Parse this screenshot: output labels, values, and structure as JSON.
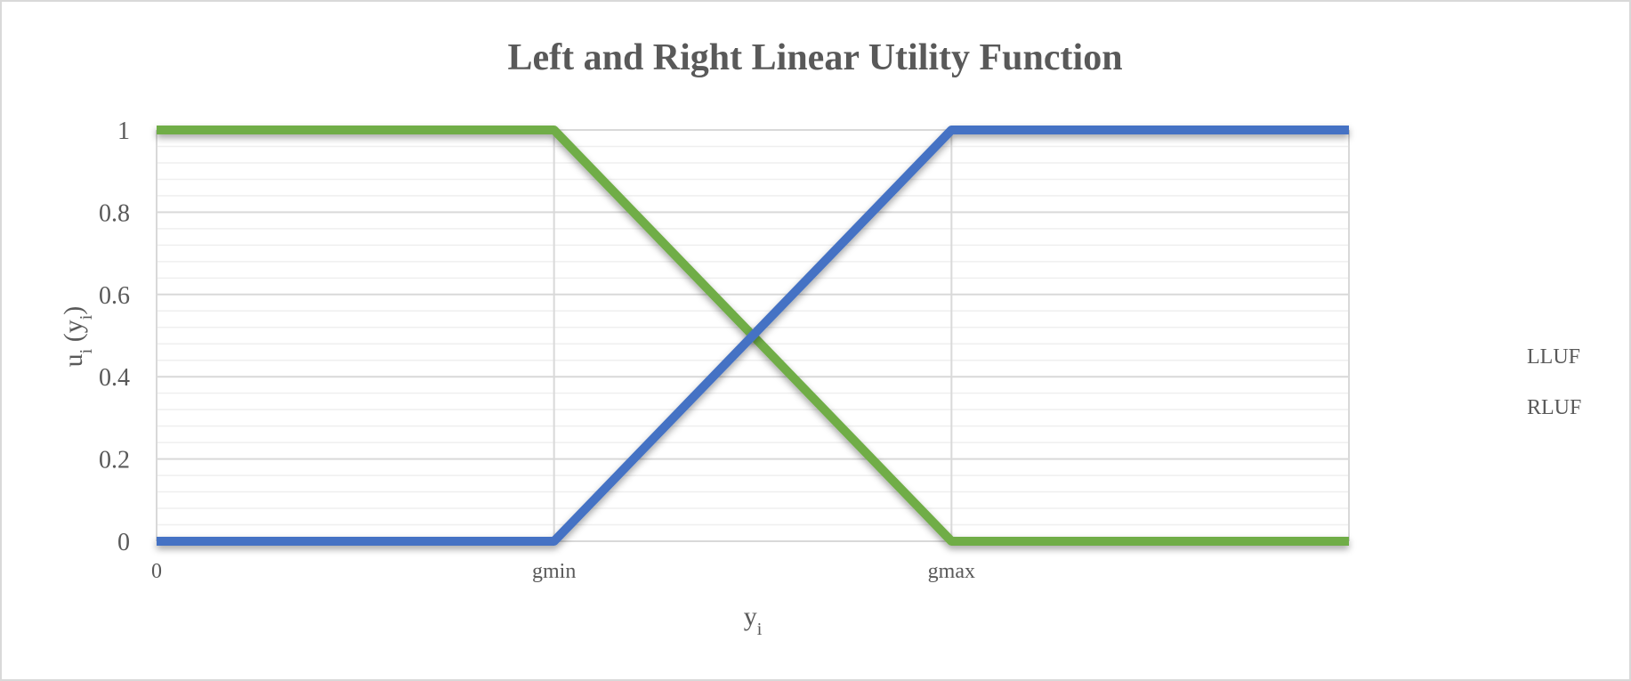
{
  "chart_data": {
    "type": "line",
    "title": "Left and Right Linear Utility Function",
    "xlabel": {
      "main": "y",
      "sub": "i"
    },
    "ylabel": {
      "u": "u",
      "u_sub": "i",
      "open": " (y",
      "y_sub": "i",
      "close": ")"
    },
    "x_ticks": [
      "0",
      "gmin",
      "gmax"
    ],
    "x_positions": [
      0,
      1,
      2,
      3
    ],
    "xlim": [
      0,
      3
    ],
    "ylim": [
      0,
      1
    ],
    "y_ticks": [
      "0",
      "0.2",
      "0.4",
      "0.6",
      "0.8",
      "1"
    ],
    "grid": true,
    "legend_position": "right",
    "series": [
      {
        "name": "LLUF",
        "color": "#70ad47",
        "x": [
          0,
          1,
          2,
          3
        ],
        "y": [
          1,
          1,
          0,
          0
        ]
      },
      {
        "name": "RLUF",
        "color": "#4472c4",
        "x": [
          0,
          1,
          2,
          3
        ],
        "y": [
          0,
          0,
          1,
          1
        ]
      }
    ]
  }
}
